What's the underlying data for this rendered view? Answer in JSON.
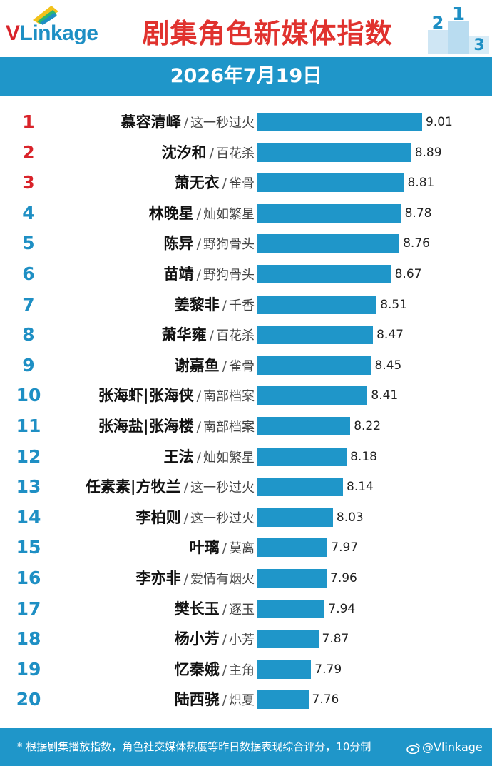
{
  "header": {
    "logo_first": "V",
    "logo_rest": "Linkage",
    "title": "剧集角色新媒体指数",
    "podium_digits": [
      "2",
      "1",
      "3"
    ]
  },
  "date": "2026年7月19日",
  "colors": {
    "accent": "#1f96c9",
    "title_red": "#e0322e",
    "top_rank_red": "#d9232a",
    "rank_blue": "#1e8fc4"
  },
  "chart_data": {
    "type": "bar",
    "orientation": "horizontal",
    "title": "剧集角色新媒体指数",
    "xlabel": "",
    "ylabel": "",
    "xlim": [
      7.2,
      9.1
    ],
    "rows": [
      {
        "rank": "1",
        "name": "慕容清峄",
        "drama": "这一秒过火",
        "value": 9.01
      },
      {
        "rank": "2",
        "name": "沈汐和",
        "drama": "百花杀",
        "value": 8.89
      },
      {
        "rank": "3",
        "name": "萧无衣",
        "drama": "雀骨",
        "value": 8.81
      },
      {
        "rank": "4",
        "name": "林晚星",
        "drama": "灿如繁星",
        "value": 8.78
      },
      {
        "rank": "5",
        "name": "陈异",
        "drama": "野狗骨头",
        "value": 8.76
      },
      {
        "rank": "6",
        "name": "苗靖",
        "drama": "野狗骨头",
        "value": 8.67
      },
      {
        "rank": "7",
        "name": "姜黎非",
        "drama": "千香",
        "value": 8.51
      },
      {
        "rank": "8",
        "name": "萧华雍",
        "drama": "百花杀",
        "value": 8.47
      },
      {
        "rank": "9",
        "name": "谢嘉鱼",
        "drama": "雀骨",
        "value": 8.45
      },
      {
        "rank": "10",
        "name": "张海虾|张海侠",
        "drama": "南部档案",
        "value": 8.41
      },
      {
        "rank": "11",
        "name": "张海盐|张海楼",
        "drama": "南部档案",
        "value": 8.22
      },
      {
        "rank": "12",
        "name": "王法",
        "drama": "灿如繁星",
        "value": 8.18
      },
      {
        "rank": "13",
        "name": "任素素|方牧兰",
        "drama": "这一秒过火",
        "value": 8.14
      },
      {
        "rank": "14",
        "name": "李柏则",
        "drama": "这一秒过火",
        "value": 8.03
      },
      {
        "rank": "15",
        "name": "叶璃",
        "drama": "莫离",
        "value": 7.97
      },
      {
        "rank": "16",
        "name": "李亦非",
        "drama": "爱情有烟火",
        "value": 7.96
      },
      {
        "rank": "17",
        "name": "樊长玉",
        "drama": "逐玉",
        "value": 7.94
      },
      {
        "rank": "18",
        "name": "杨小芳",
        "drama": "小芳",
        "value": 7.87
      },
      {
        "rank": "19",
        "name": "忆秦娥",
        "drama": "主角",
        "value": 7.79
      },
      {
        "rank": "20",
        "name": "陆西骁",
        "drama": "炽夏",
        "value": 7.76
      }
    ]
  },
  "separator": "/",
  "footer": {
    "note": "* 根据剧集播放指数，角色社交媒体热度等昨日数据表现综合评分，10分制",
    "watermark": "@Vlinkage"
  }
}
